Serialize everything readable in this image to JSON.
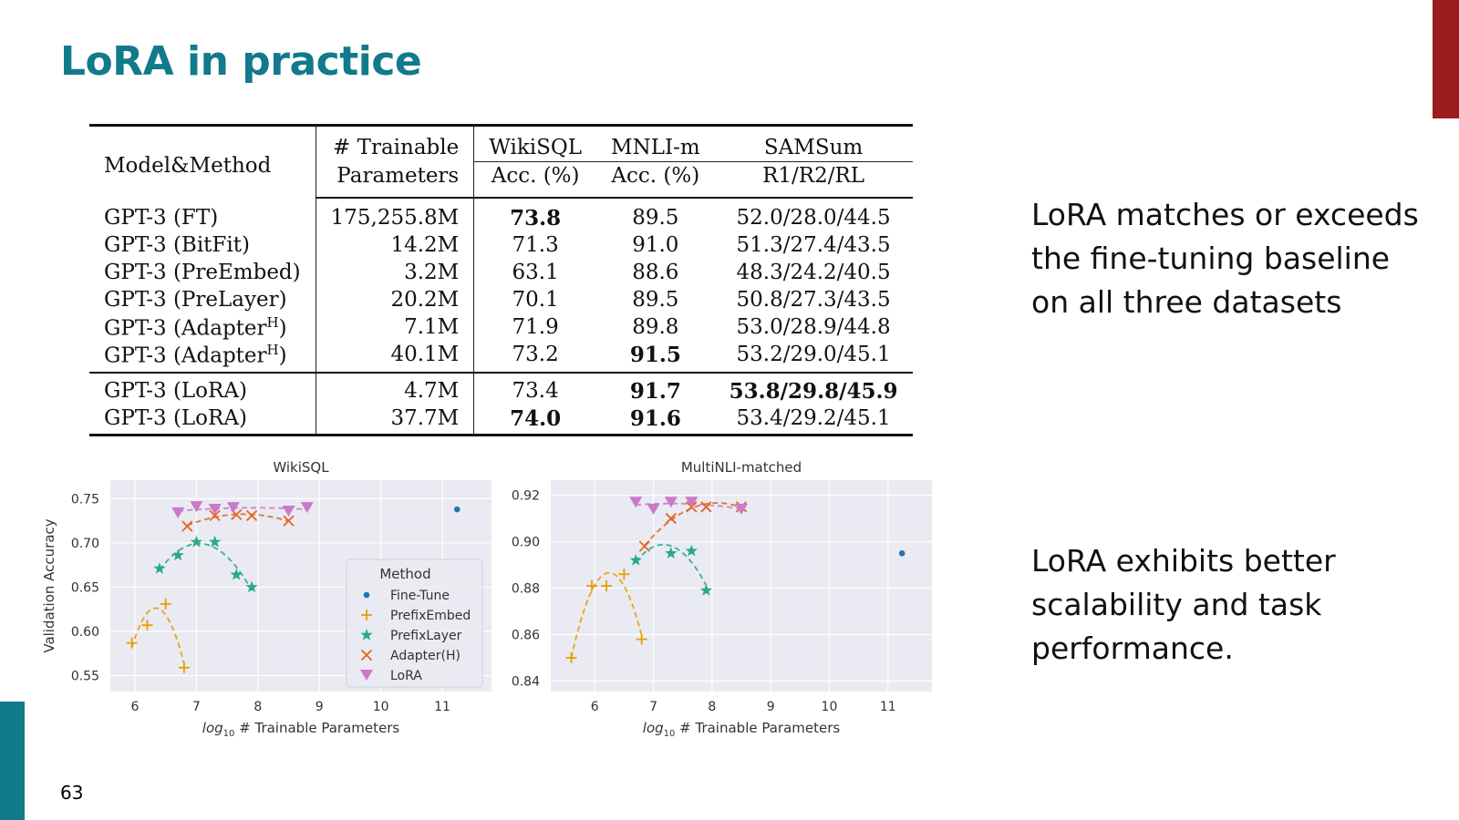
{
  "slide": {
    "title": "LoRA in practice",
    "page_number": "63",
    "bullets": [
      "LoRA matches or exceeds the fine-tuning baseline on all three datasets",
      "LoRA exhibits better scalability and task performance."
    ],
    "colors": {
      "title": "#117a8b",
      "accent_top": "#9b1c1c",
      "accent_bottom": "#117a8b"
    }
  },
  "table": {
    "headers": {
      "model": "Model&Method",
      "trainable_1": "# Trainable",
      "trainable_2": "Parameters",
      "wikisql": "WikiSQL",
      "mnli": "MNLI-m",
      "samsum": "SAMSum",
      "wikisql_sub": "Acc. (%)",
      "mnli_sub": "Acc. (%)",
      "samsum_sub": "R1/R2/RL"
    },
    "rows": [
      {
        "model": "GPT-3 (FT)",
        "sup": "",
        "params": "175,255.8M",
        "wikisql": "73.8",
        "mnli": "89.5",
        "samsum": "52.0/28.0/44.5",
        "bold": [
          "wikisql"
        ]
      },
      {
        "model": "GPT-3 (BitFit)",
        "sup": "",
        "params": "14.2M",
        "wikisql": "71.3",
        "mnli": "91.0",
        "samsum": "51.3/27.4/43.5",
        "bold": []
      },
      {
        "model": "GPT-3 (PreEmbed)",
        "sup": "",
        "params": "3.2M",
        "wikisql": "63.1",
        "mnli": "88.6",
        "samsum": "48.3/24.2/40.5",
        "bold": []
      },
      {
        "model": "GPT-3 (PreLayer)",
        "sup": "",
        "params": "20.2M",
        "wikisql": "70.1",
        "mnli": "89.5",
        "samsum": "50.8/27.3/43.5",
        "bold": []
      },
      {
        "model": "GPT-3 (Adapter",
        "sup": "H",
        "params": "7.1M",
        "wikisql": "71.9",
        "mnli": "89.8",
        "samsum": "53.0/28.9/44.8",
        "bold": []
      },
      {
        "model": "GPT-3 (Adapter",
        "sup": "H",
        "params": "40.1M",
        "wikisql": "73.2",
        "mnli": "91.5",
        "samsum": "53.2/29.0/45.1",
        "bold": [
          "mnli"
        ]
      }
    ],
    "lora_rows": [
      {
        "model": "GPT-3 (LoRA)",
        "sup": "",
        "params": "4.7M",
        "wikisql": "73.4",
        "mnli": "91.7",
        "samsum": "53.8/29.8/45.9",
        "bold": [
          "mnli",
          "samsum"
        ]
      },
      {
        "model": "GPT-3 (LoRA)",
        "sup": "",
        "params": "37.7M",
        "wikisql": "74.0",
        "mnli": "91.6",
        "samsum": "53.4/29.2/45.1",
        "bold": [
          "wikisql",
          "mnli"
        ]
      }
    ]
  },
  "chart_data": [
    {
      "type": "scatter",
      "title": "WikiSQL",
      "xlabel_prefix": "log",
      "xlabel_sub": "10",
      "xlabel_suffix": " # Trainable Parameters",
      "ylabel": "Validation Accuracy",
      "xlim": [
        5.6,
        11.8
      ],
      "ylim": [
        0.532,
        0.771
      ],
      "xticks": [
        6,
        7,
        8,
        9,
        10,
        11
      ],
      "yticks": [
        0.55,
        0.6,
        0.65,
        0.7,
        0.75
      ],
      "ytick_labels": [
        "0.55",
        "0.60",
        "0.65",
        "0.70",
        "0.75"
      ],
      "grid": true,
      "legend": {
        "title": "Method",
        "placement": "lower-right"
      },
      "series": [
        {
          "name": "Fine-Tune",
          "marker": "dot",
          "color": "#1f77b4",
          "x": [
            11.24
          ],
          "y": [
            0.738
          ]
        },
        {
          "name": "PrefixEmbed",
          "marker": "plus",
          "color": "#e69f00",
          "x": [
            5.95,
            6.2,
            6.5,
            6.8
          ],
          "y": [
            0.587,
            0.607,
            0.631,
            0.559
          ]
        },
        {
          "name": "PrefixLayer",
          "marker": "star",
          "color": "#2aa88a",
          "x": [
            6.4,
            6.7,
            7.0,
            7.3,
            7.65,
            7.9
          ],
          "y": [
            0.671,
            0.686,
            0.701,
            0.701,
            0.664,
            0.65
          ]
        },
        {
          "name": "Adapter(H)",
          "marker": "x",
          "color": "#e1671e",
          "x": [
            6.85,
            7.3,
            7.65,
            7.9,
            8.5
          ],
          "y": [
            0.719,
            0.731,
            0.732,
            0.731,
            0.725
          ]
        },
        {
          "name": "LoRA",
          "marker": "tri",
          "color": "#cc79c8",
          "x": [
            6.7,
            7.0,
            7.3,
            7.6,
            8.5,
            8.8
          ],
          "y": [
            0.734,
            0.741,
            0.738,
            0.74,
            0.736,
            0.74
          ]
        }
      ]
    },
    {
      "type": "scatter",
      "title": "MultiNLI-matched",
      "xlabel_prefix": "log",
      "xlabel_sub": "10",
      "xlabel_suffix": " # Trainable Parameters",
      "ylabel": "",
      "xlim": [
        5.25,
        11.75
      ],
      "ylim": [
        0.8355,
        0.9265
      ],
      "xticks": [
        6,
        7,
        8,
        9,
        10,
        11
      ],
      "yticks": [
        0.84,
        0.86,
        0.88,
        0.9,
        0.92
      ],
      "ytick_labels": [
        "0.84",
        "0.86",
        "0.88",
        "0.90",
        "0.92"
      ],
      "grid": true,
      "legend": null,
      "series": [
        {
          "name": "Fine-Tune",
          "marker": "dot",
          "color": "#1f77b4",
          "x": [
            11.24
          ],
          "y": [
            0.895
          ]
        },
        {
          "name": "PrefixEmbed",
          "marker": "plus",
          "color": "#e69f00",
          "x": [
            5.6,
            5.95,
            6.2,
            6.5,
            6.8
          ],
          "y": [
            0.85,
            0.881,
            0.881,
            0.886,
            0.858
          ]
        },
        {
          "name": "PrefixLayer",
          "marker": "star",
          "color": "#2aa88a",
          "x": [
            6.7,
            7.3,
            7.65,
            7.9
          ],
          "y": [
            0.892,
            0.895,
            0.896,
            0.879
          ]
        },
        {
          "name": "Adapter(H)",
          "marker": "x",
          "color": "#e1671e",
          "x": [
            6.85,
            7.3,
            7.65,
            7.9,
            8.5
          ],
          "y": [
            0.898,
            0.91,
            0.915,
            0.915,
            0.915
          ]
        },
        {
          "name": "LoRA",
          "marker": "tri",
          "color": "#cc79c8",
          "x": [
            6.7,
            7.0,
            7.3,
            7.65,
            8.5
          ],
          "y": [
            0.917,
            0.914,
            0.917,
            0.917,
            0.914
          ]
        }
      ]
    }
  ]
}
